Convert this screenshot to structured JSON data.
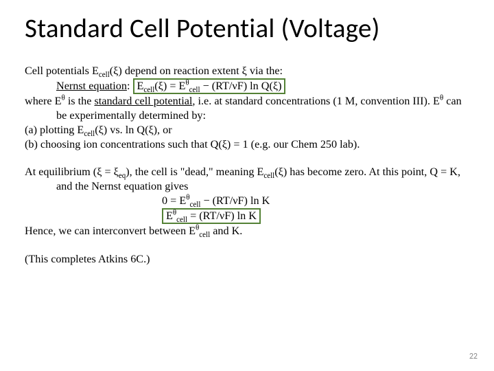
{
  "title": "Standard Cell Potential (Voltage)",
  "p1_l1a": "Cell potentials E",
  "p1_l1b": "(ξ) depend on reaction extent ξ via the:",
  "p1_l2a": "Nernst equation",
  "p1_l2b": ": ",
  "nernst_a": "E",
  "nernst_b": "(ξ) = E",
  "nernst_c": " − (RT/νF) ln Q(ξ)",
  "sub_cell": "cell",
  "sup_theta": "θ",
  "p1_l3a": "where E",
  "p1_l3b": " is the ",
  "p1_l3c": "standard cell potential",
  "p1_l3d": ", i.e. at standard concentrations (1 M, convention III). E",
  "p1_l3e": " can be experimentally determined by:",
  "p1_l4a": "(a) plotting E",
  "p1_l4b": "(ξ) vs. ln Q(ξ), or",
  "p1_l5": "(b) choosing ion concentrations such that Q(ξ) = 1 (e.g. our Chem 250 lab).",
  "p2_l1a": "At equilibrium (ξ = ξ",
  "sub_eq": "eq",
  "p2_l1b": "), the cell is \"dead,\" meaning E",
  "p2_l1c": "(ξ) has become zero. At this point, Q = K, and the Nernst equation gives",
  "eq1a": "0 = E",
  "eq1b": " − (RT/νF) ln K",
  "eq2a": "E",
  "eq2b": " = (RT/νF) ln K",
  "p2_l4a": "Hence, we can interconvert between E",
  "p2_l4b": " and K.",
  "p3": "(This completes Atkins 6C.)",
  "pagenum": "22",
  "colors": {
    "box_border": "#538135",
    "pagenum": "#8a8a8a",
    "bg": "#ffffff",
    "text": "#000000"
  },
  "fonts": {
    "title_family": "Calibri",
    "title_size_pt": 29,
    "body_family": "Times New Roman",
    "body_size_pt": 12
  }
}
